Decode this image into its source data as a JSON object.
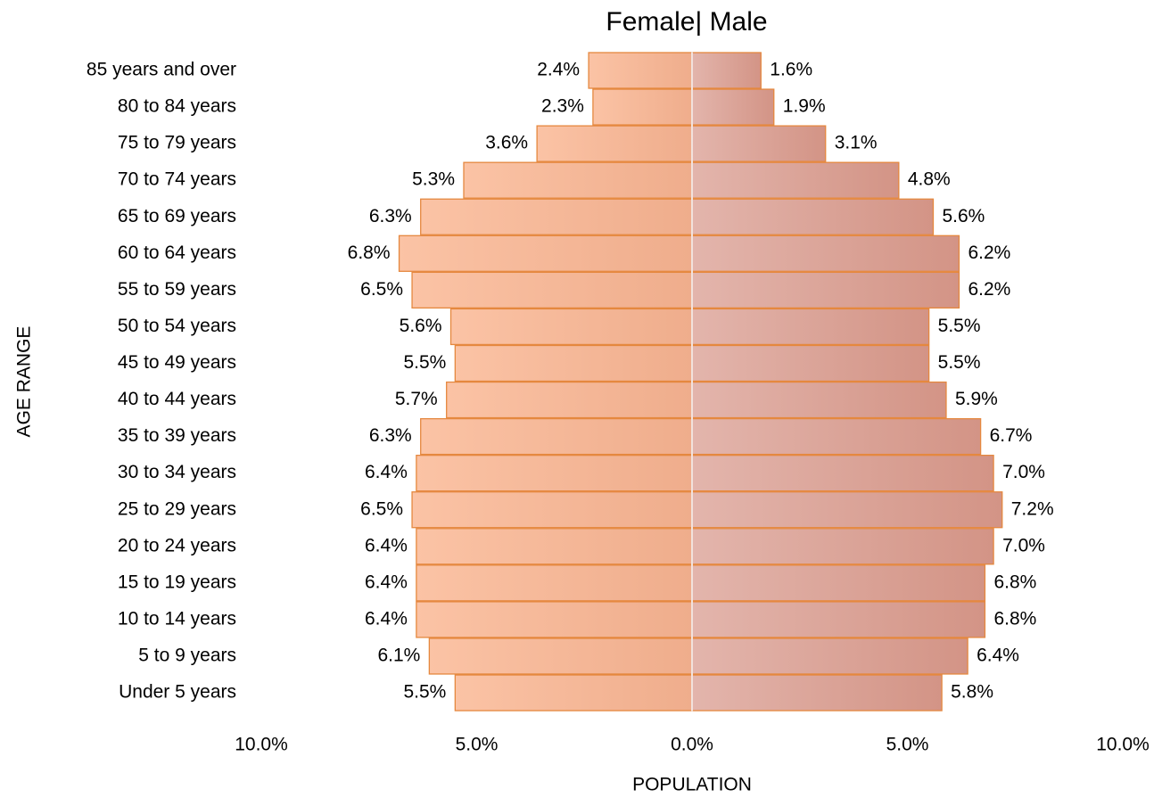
{
  "chart_data": {
    "type": "pyramid",
    "title": "Female| Male",
    "xlabel": "POPULATION",
    "ylabel": "AGE RANGE",
    "categories": [
      "85 years and over",
      "80 to 84 years",
      "75 to 79 years",
      "70 to 74 years",
      "65 to 69 years",
      "60 to 64 years",
      "55 to 59 years",
      "50 to 54 years",
      "45 to 49 years",
      "40 to 44 years",
      "35 to 39 years",
      "30 to 34 years",
      "25 to 29 years",
      "20 to 24 years",
      "15 to 19 years",
      "10 to 14 years",
      "5 to 9 years",
      "Under 5 years"
    ],
    "series": [
      {
        "name": "Female",
        "color": "#f8bd9e",
        "edge": "#e5883f",
        "values": [
          -2.4,
          -2.3,
          -3.6,
          -5.3,
          -6.3,
          -6.8,
          -6.5,
          -5.6,
          -5.5,
          -5.7,
          -6.3,
          -6.4,
          -6.5,
          -6.4,
          -6.4,
          -6.4,
          -6.1,
          -5.5
        ],
        "value_labels": [
          "2.4%",
          "2.3%",
          "3.6%",
          "5.3%",
          "6.3%",
          "6.8%",
          "6.5%",
          "5.6%",
          "5.5%",
          "5.7%",
          "6.3%",
          "6.4%",
          "6.5%",
          "6.4%",
          "6.4%",
          "6.4%",
          "6.1%",
          "5.5%"
        ]
      },
      {
        "name": "Male",
        "color": "#dba79c",
        "edge": "#e5883f",
        "values": [
          1.6,
          1.9,
          3.1,
          4.8,
          5.6,
          6.2,
          6.2,
          5.5,
          5.5,
          5.9,
          6.7,
          7.0,
          7.2,
          7.0,
          6.8,
          6.8,
          6.4,
          5.8
        ],
        "value_labels": [
          "1.6%",
          "1.9%",
          "3.1%",
          "4.8%",
          "5.6%",
          "6.2%",
          "6.2%",
          "5.5%",
          "5.5%",
          "5.9%",
          "6.7%",
          "7.0%",
          "7.2%",
          "7.0%",
          "6.8%",
          "6.8%",
          "6.4%",
          "5.8%"
        ]
      }
    ],
    "xlim": [
      -10,
      10
    ],
    "xticks": [
      {
        "value": -10,
        "label": "10.0%"
      },
      {
        "value": -5,
        "label": "5.0%"
      },
      {
        "value": 0,
        "label": "0.0%"
      },
      {
        "value": 5,
        "label": "5.0%"
      },
      {
        "value": 10,
        "label": "10.0%"
      }
    ]
  }
}
